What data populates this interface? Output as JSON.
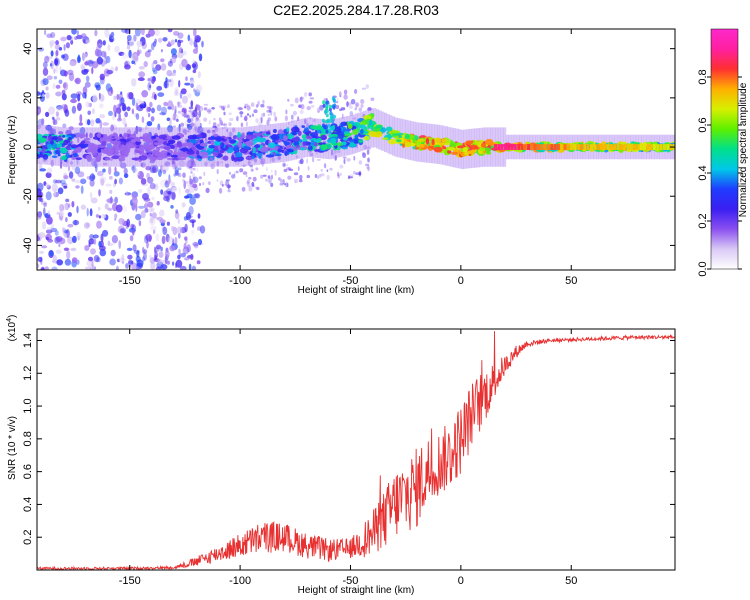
{
  "title": "C2E2.2025.284.17.28.R03",
  "chart_data": [
    {
      "type": "heatmap",
      "name": "spectrogram",
      "xlabel": "Height of straight line (km)",
      "ylabel": "Frequency (Hz)",
      "xlim": [
        -192,
        97
      ],
      "ylim": [
        -50,
        48
      ],
      "xticks": [
        -150,
        -100,
        -50,
        0,
        50
      ],
      "yticks": [
        -40,
        -20,
        0,
        20,
        40
      ],
      "colorbar": {
        "label": "Normalized spectral amplitude",
        "range": [
          0,
          1
        ],
        "ticks": [
          "0.0",
          "0.2",
          "0.4",
          "0.6",
          "0.8"
        ],
        "tick_values": [
          0.0,
          0.2,
          0.4,
          0.6,
          0.8
        ],
        "colors": [
          "#ffffff",
          "#d9c9f5",
          "#8a4ff0",
          "#3b1ff2",
          "#1f3cff",
          "#00c8e8",
          "#00e08a",
          "#5ef000",
          "#d7f000",
          "#ffb000",
          "#ff3030",
          "#ff1fa0",
          "#ff29cc"
        ]
      },
      "ridge": [
        {
          "x": -190,
          "f": 1,
          "a": 0.5
        },
        {
          "x": -180,
          "f": 0,
          "a": 0.55
        },
        {
          "x": -170,
          "f": 0,
          "a": 0.3
        },
        {
          "x": -150,
          "f": 0,
          "a": 0.25
        },
        {
          "x": -130,
          "f": 0,
          "a": 0.3
        },
        {
          "x": -120,
          "f": 0,
          "a": 0.4
        },
        {
          "x": -110,
          "f": 0,
          "a": 0.45
        },
        {
          "x": -100,
          "f": 0,
          "a": 0.45
        },
        {
          "x": -90,
          "f": 1,
          "a": 0.45
        },
        {
          "x": -80,
          "f": 2,
          "a": 0.45
        },
        {
          "x": -70,
          "f": 4,
          "a": 0.5
        },
        {
          "x": -60,
          "f": 3,
          "a": 0.55
        },
        {
          "x": -50,
          "f": 5,
          "a": 0.6
        },
        {
          "x": -40,
          "f": 8,
          "a": 0.7
        },
        {
          "x": -30,
          "f": 4,
          "a": 0.8
        },
        {
          "x": -20,
          "f": 2,
          "a": 0.85
        },
        {
          "x": -10,
          "f": 1,
          "a": 0.9
        },
        {
          "x": 0,
          "f": -1,
          "a": 0.9
        },
        {
          "x": 10,
          "f": 0,
          "a": 0.88
        },
        {
          "x": 20,
          "f": 0,
          "a": 0.9
        },
        {
          "x": 30,
          "f": 0,
          "a": 0.82
        },
        {
          "x": 50,
          "f": 0,
          "a": 0.74
        },
        {
          "x": 70,
          "f": 0,
          "a": 0.72
        },
        {
          "x": 95,
          "f": 0,
          "a": 0.7
        }
      ]
    },
    {
      "type": "line",
      "name": "snr",
      "xlabel": "Height of straight line (km)",
      "ylabel": "SNR (10 * v/v)",
      "y_multiplier": "(x10",
      "y_multiplier_exp": "4",
      "y_multiplier_close": ")",
      "xlim": [
        -192,
        97
      ],
      "ylim": [
        0,
        1.47
      ],
      "xticks": [
        -150,
        -100,
        -50,
        0,
        50
      ],
      "yticks": [
        0.2,
        0.4,
        0.6,
        0.8,
        1.0,
        1.2,
        1.4
      ],
      "ytick_labels": [
        "0.2",
        "0.4",
        "0.6",
        "0.8",
        "1.0",
        "1.2",
        "1.4"
      ],
      "color": "#e83030",
      "trend": {
        "x": [
          -192,
          -170,
          -150,
          -130,
          -120,
          -110,
          -100,
          -90,
          -80,
          -70,
          -60,
          -50,
          -40,
          -35,
          -30,
          -25,
          -20,
          -15,
          -10,
          -5,
          0,
          5,
          10,
          15,
          20,
          25,
          30,
          40,
          60,
          80,
          97
        ],
        "y": [
          0.01,
          0.01,
          0.01,
          0.015,
          0.05,
          0.1,
          0.15,
          0.2,
          0.2,
          0.15,
          0.12,
          0.13,
          0.22,
          0.3,
          0.4,
          0.45,
          0.5,
          0.6,
          0.65,
          0.7,
          0.8,
          0.95,
          1.05,
          1.15,
          1.25,
          1.33,
          1.38,
          1.4,
          1.41,
          1.42,
          1.42
        ]
      },
      "noise": {
        "x": [
          -192,
          -130,
          -110,
          -90,
          -70,
          -50,
          -40,
          -30,
          -20,
          -10,
          0,
          10,
          20,
          30,
          40,
          97
        ],
        "amp": [
          0.008,
          0.008,
          0.05,
          0.1,
          0.08,
          0.06,
          0.14,
          0.22,
          0.25,
          0.2,
          0.22,
          0.18,
          0.06,
          0.02,
          0.012,
          0.012
        ]
      }
    }
  ]
}
